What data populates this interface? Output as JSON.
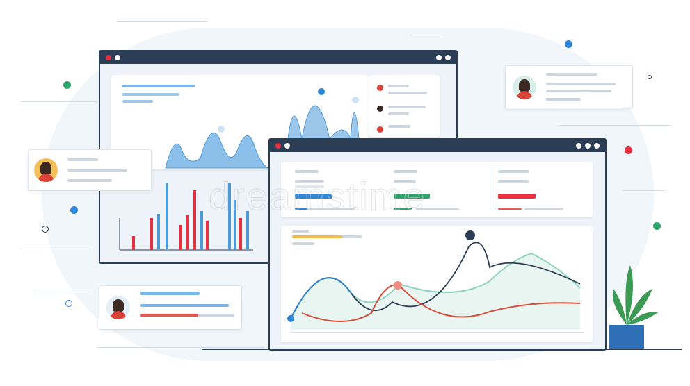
{
  "watermark": "dreamstime",
  "colors": {
    "frame": "#2c3e55",
    "blue": "#2f86d6",
    "green": "#2ea36a",
    "red": "#e8303f",
    "orange": "#f5b94a",
    "chart_blue": "#6fb1e3",
    "chart_red": "#d94b3b"
  },
  "stat_cards": [
    {
      "accent": "blue",
      "progress": 0.15
    },
    {
      "accent": "green",
      "progress": 0.9
    },
    {
      "accent": "red",
      "progress": 1.0
    }
  ]
}
